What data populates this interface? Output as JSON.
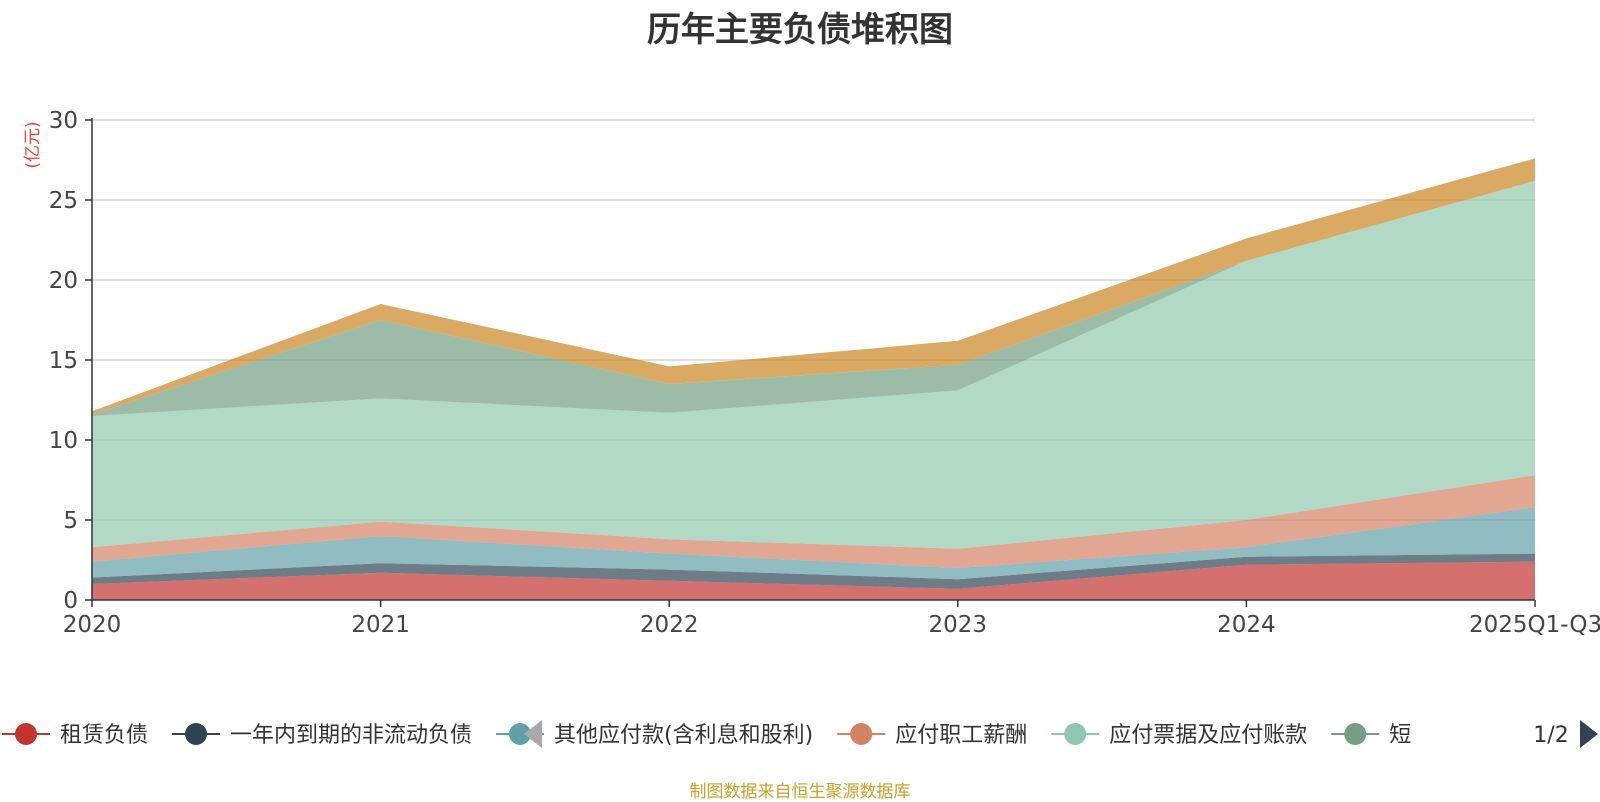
{
  "title": "历年主要负债堆积图",
  "footer": "制图数据来自恒生聚源数据库",
  "chart_data": {
    "type": "area",
    "stacked": true,
    "ylabel": "(亿元)",
    "ylim": [
      0,
      30
    ],
    "yticks": [
      0,
      5,
      10,
      15,
      20,
      25,
      30
    ],
    "grid": true,
    "categories": [
      "2020",
      "2021",
      "2022",
      "2023",
      "2024",
      "2025Q1-Q3"
    ],
    "series": [
      {
        "name": "租赁负债",
        "color": "#c23531",
        "values": [
          1.0,
          1.7,
          1.2,
          0.7,
          2.2,
          2.4
        ]
      },
      {
        "name": "一年内到期的非流动负债",
        "color": "#2f4554",
        "values": [
          0.4,
          0.6,
          0.7,
          0.6,
          0.5,
          0.5
        ]
      },
      {
        "name": "其他应付款(含利息和股利)",
        "color": "#61a0a8",
        "values": [
          1.0,
          1.7,
          1.0,
          0.7,
          0.6,
          2.9
        ]
      },
      {
        "name": "应付职工薪酬",
        "color": "#d48265",
        "values": [
          0.9,
          0.9,
          0.9,
          1.2,
          1.7,
          2.0
        ]
      },
      {
        "name": "应付票据及应付账款",
        "color": "#91c7ae",
        "values": [
          8.2,
          7.7,
          7.9,
          9.9,
          16.2,
          18.4
        ]
      },
      {
        "name": "短",
        "color": "#749f83",
        "values": [
          0.1,
          4.9,
          1.8,
          1.6,
          0.0,
          0.0
        ]
      },
      {
        "color": "#ca8622",
        "values": [
          0.2,
          1.0,
          1.1,
          1.5,
          1.4,
          1.4
        ]
      }
    ],
    "legend": {
      "position": "bottom",
      "page_indicator": "1/2"
    }
  }
}
